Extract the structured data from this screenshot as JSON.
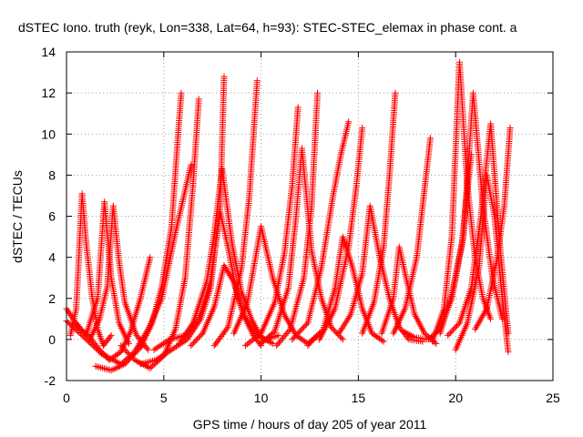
{
  "chart_data": {
    "type": "scatter",
    "title": "dSTEC Iono. truth (reyk, Lon=338, Lat=64, h=93): STEC-STEC_elemax in phase cont. a",
    "xlabel": "GPS time / hours of day 205 of year 2011",
    "ylabel": "dSTEC  / TECUs",
    "xlim": [
      0,
      25
    ],
    "ylim": [
      -2,
      14
    ],
    "xticks": [
      0,
      5,
      10,
      15,
      20,
      25
    ],
    "yticks": [
      -2,
      0,
      2,
      4,
      6,
      8,
      10,
      12,
      14
    ],
    "grid": true,
    "legend": "none",
    "marker": "plus",
    "color": "#ff0000",
    "series": [
      {
        "x": [
          0.0,
          0.6,
          1.2,
          1.7,
          2.2,
          2.8,
          3.3,
          3.8,
          4.3
        ],
        "y": [
          1.5,
          0.6,
          0.1,
          -0.5,
          -1.0,
          -0.6,
          0.4,
          2.0,
          4.0
        ]
      },
      {
        "x": [
          0.2,
          0.5,
          0.8,
          1.0,
          1.3,
          1.6,
          1.9,
          2.3
        ],
        "y": [
          0.2,
          1.5,
          7.1,
          4.8,
          2.2,
          0.5,
          -0.3,
          0.2
        ]
      },
      {
        "x": [
          0.5,
          1.0,
          1.6,
          1.95,
          2.3,
          2.7,
          3.2
        ],
        "y": [
          0.8,
          0.2,
          2.0,
          6.7,
          3.0,
          0.8,
          -0.2
        ]
      },
      {
        "x": [
          1.2,
          1.7,
          2.1,
          2.4,
          2.7,
          3.0,
          3.6,
          4.2
        ],
        "y": [
          0.0,
          1.0,
          2.6,
          6.5,
          3.8,
          1.8,
          0.2,
          -0.5
        ]
      },
      {
        "x": [
          0.0,
          0.8,
          1.8,
          2.8,
          3.5,
          4.2,
          4.9,
          5.6,
          6.4
        ],
        "y": [
          0.9,
          0.2,
          -0.7,
          -1.2,
          -0.6,
          0.5,
          2.0,
          5.2,
          8.5
        ]
      },
      {
        "x": [
          1.5,
          2.3,
          3.0,
          3.8,
          4.4,
          4.9,
          5.4,
          5.7,
          5.9
        ],
        "y": [
          -1.3,
          -1.5,
          -1.2,
          -0.4,
          0.8,
          2.6,
          5.5,
          9.5,
          12.0
        ]
      },
      {
        "x": [
          2.8,
          3.5,
          4.3,
          5.0,
          5.6,
          6.1,
          6.5,
          6.8
        ],
        "y": [
          -0.3,
          -1.0,
          -1.4,
          -0.8,
          0.5,
          3.0,
          7.5,
          11.7
        ]
      },
      {
        "x": [
          3.8,
          4.6,
          5.4,
          6.2,
          6.9,
          7.4,
          7.9,
          8.1
        ],
        "y": [
          -1.2,
          -1.0,
          -0.5,
          0.0,
          1.0,
          2.5,
          6.5,
          12.8
        ]
      },
      {
        "x": [
          4.5,
          5.3,
          6.1,
          6.8,
          7.4,
          7.9,
          8.3,
          8.7,
          9.1,
          9.6,
          10.2,
          10.9
        ],
        "y": [
          -0.5,
          0.0,
          0.2,
          1.0,
          2.8,
          6.2,
          4.5,
          2.5,
          1.2,
          0.4,
          0.0,
          0.2
        ]
      },
      {
        "x": [
          5.8,
          6.5,
          7.2,
          7.6,
          8.0,
          8.5,
          9.0,
          9.5,
          10.0,
          10.6
        ],
        "y": [
          -0.2,
          0.8,
          2.8,
          5.2,
          8.3,
          4.7,
          2.3,
          1.0,
          0.1,
          -0.2
        ]
      },
      {
        "x": [
          6.4,
          7.0,
          7.6,
          8.1,
          8.6,
          9.1,
          9.6,
          10.0
        ],
        "y": [
          -0.3,
          0.3,
          1.6,
          3.6,
          2.8,
          1.2,
          0.2,
          -0.3
        ]
      },
      {
        "x": [
          7.6,
          8.3,
          9.0,
          9.4,
          9.8
        ],
        "y": [
          -0.3,
          0.6,
          3.5,
          7.0,
          12.6
        ]
      },
      {
        "x": [
          8.6,
          9.3,
          10.0,
          10.6,
          11.2,
          11.8,
          12.4,
          13.0
        ],
        "y": [
          0.3,
          1.8,
          5.5,
          3.0,
          1.2,
          0.2,
          -0.2,
          0.3
        ]
      },
      {
        "x": [
          9.2,
          10.0,
          10.7,
          11.2,
          11.6,
          11.9
        ],
        "y": [
          -0.3,
          0.3,
          1.8,
          4.2,
          7.5,
          11.3
        ]
      },
      {
        "x": [
          10.0,
          10.7,
          11.4,
          11.8,
          12.1,
          12.6,
          13.1,
          13.6,
          14.2
        ],
        "y": [
          -0.2,
          0.4,
          2.5,
          6.0,
          9.3,
          4.3,
          2.0,
          0.6,
          0.0
        ]
      },
      {
        "x": [
          10.8,
          11.5,
          12.2,
          12.6,
          12.9
        ],
        "y": [
          -0.3,
          0.5,
          3.0,
          6.5,
          12.0
        ]
      },
      {
        "x": [
          11.6,
          12.4,
          13.1,
          13.7,
          14.1,
          14.5
        ],
        "y": [
          0.0,
          0.8,
          3.5,
          7.0,
          9.0,
          10.6
        ]
      },
      {
        "x": [
          12.4,
          13.2,
          13.8,
          14.2,
          14.7,
          15.2,
          15.7,
          16.3
        ],
        "y": [
          -0.3,
          0.5,
          2.5,
          5.0,
          3.5,
          1.5,
          0.3,
          -0.1
        ]
      },
      {
        "x": [
          13.0,
          13.8,
          14.5,
          14.9,
          15.2
        ],
        "y": [
          0.0,
          1.5,
          4.5,
          7.5,
          10.3
        ]
      },
      {
        "x": [
          14.0,
          14.6,
          15.2,
          15.6,
          16.1,
          16.6,
          17.1,
          17.6,
          18.3
        ],
        "y": [
          0.3,
          1.2,
          3.2,
          6.5,
          4.0,
          2.0,
          0.6,
          0.0,
          -0.1
        ]
      },
      {
        "x": [
          15.2,
          15.8,
          16.3,
          16.6,
          16.9
        ],
        "y": [
          0.3,
          1.8,
          4.5,
          8.0,
          12.0
        ]
      },
      {
        "x": [
          16.2,
          16.8,
          17.1,
          17.5,
          17.9,
          18.4,
          19.0
        ],
        "y": [
          0.3,
          2.0,
          4.5,
          2.8,
          1.2,
          0.3,
          -0.2
        ]
      },
      {
        "x": [
          16.8,
          17.4,
          18.0,
          18.4,
          18.7
        ],
        "y": [
          0.3,
          1.5,
          4.0,
          7.3,
          9.8
        ]
      },
      {
        "x": [
          17.3,
          17.9,
          18.6,
          19.2,
          19.8,
          20.3,
          20.8
        ],
        "y": [
          0.4,
          0.1,
          0.0,
          0.5,
          2.0,
          4.5,
          9.0
        ]
      },
      {
        "x": [
          18.8,
          19.4,
          19.8,
          20.2,
          20.6,
          21.0,
          21.4,
          21.8
        ],
        "y": [
          -0.1,
          1.5,
          5.0,
          13.5,
          7.5,
          4.0,
          2.0,
          1.0
        ]
      },
      {
        "x": [
          19.2,
          19.8,
          20.4,
          20.9,
          21.4,
          21.9,
          22.4
        ],
        "y": [
          0.3,
          2.2,
          5.0,
          12.0,
          6.5,
          3.0,
          1.0
        ]
      },
      {
        "x": [
          19.6,
          20.2,
          20.8,
          21.3,
          21.8,
          22.3,
          22.7
        ],
        "y": [
          0.2,
          0.8,
          2.5,
          6.0,
          10.5,
          4.3,
          0.3
        ]
      },
      {
        "x": [
          20.0,
          20.6,
          21.2,
          21.6,
          22.0,
          22.4,
          22.7
        ],
        "y": [
          -0.5,
          0.8,
          3.5,
          8.0,
          6.0,
          2.0,
          -0.6
        ]
      },
      {
        "x": [
          21.0,
          21.6,
          22.1,
          22.5,
          22.8
        ],
        "y": [
          0.5,
          1.5,
          3.8,
          6.5,
          10.3
        ]
      }
    ]
  }
}
